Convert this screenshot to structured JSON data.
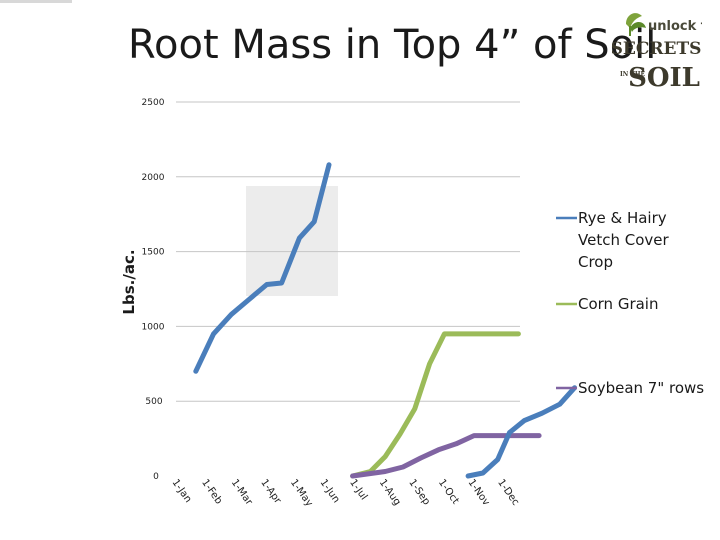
{
  "slide": {
    "title": "Root Mass in Top 4” of Soil",
    "logo": {
      "line1": "unlock the",
      "line2": "SECRETS",
      "line3": "IN THE",
      "line4": "SOIL",
      "icon": "sprout-icon"
    }
  },
  "chart_data": {
    "type": "line",
    "title": "",
    "xlabel": "",
    "ylabel": "Lbs./ac.",
    "ylim": [
      0,
      2500
    ],
    "yticks": [
      0,
      500,
      1000,
      1500,
      2000,
      2500
    ],
    "grid": true,
    "legend_position": "right",
    "categories": [
      "1-Jan",
      "1-Feb",
      "1-Mar",
      "1-Apr",
      "1-May",
      "1-Jun",
      "1-Jul",
      "1-Aug",
      "1-Sep",
      "1-Oct",
      "1-Nov",
      "1-Dec"
    ],
    "series": [
      {
        "name": "Rye & Hairy Vetch Cover Crop",
        "legend_lines": [
          "Rye & Hairy",
          "Vetch Cover",
          "Crop"
        ],
        "color": "#4a7ebb",
        "points": [
          {
            "x": 0.6,
            "y": 700
          },
          {
            "x": 1.2,
            "y": 950
          },
          {
            "x": 1.8,
            "y": 1080
          },
          {
            "x": 2.4,
            "y": 1180
          },
          {
            "x": 3.0,
            "y": 1280
          },
          {
            "x": 3.5,
            "y": 1290
          },
          {
            "x": 4.1,
            "y": 1590
          },
          {
            "x": 4.6,
            "y": 1700
          },
          {
            "x": 5.1,
            "y": 2080
          }
        ]
      },
      {
        "name": "Corn Grain",
        "legend_lines": [
          "Corn Grain"
        ],
        "color": "#9bbb59",
        "points": [
          {
            "x": 5.9,
            "y": 0
          },
          {
            "x": 6.5,
            "y": 30
          },
          {
            "x": 7.0,
            "y": 130
          },
          {
            "x": 7.5,
            "y": 280
          },
          {
            "x": 8.0,
            "y": 450
          },
          {
            "x": 8.5,
            "y": 750
          },
          {
            "x": 9.0,
            "y": 950
          },
          {
            "x": 10.0,
            "y": 950
          },
          {
            "x": 11.5,
            "y": 950
          }
        ]
      },
      {
        "name": "Soybean 7\" rows",
        "legend_lines": [
          "Soybean 7\" rows"
        ],
        "color": "#8064a2",
        "points": [
          {
            "x": 5.9,
            "y": 0
          },
          {
            "x": 7.0,
            "y": 30
          },
          {
            "x": 7.6,
            "y": 60
          },
          {
            "x": 8.2,
            "y": 120
          },
          {
            "x": 8.8,
            "y": 175
          },
          {
            "x": 9.4,
            "y": 215
          },
          {
            "x": 10.0,
            "y": 270
          },
          {
            "x": 11.0,
            "y": 270
          },
          {
            "x": 12.2,
            "y": 270
          }
        ]
      },
      {
        "name": "",
        "color": "#4a7ebb",
        "points": [
          {
            "x": 9.8,
            "y": 0
          },
          {
            "x": 10.3,
            "y": 20
          },
          {
            "x": 10.8,
            "y": 110
          },
          {
            "x": 11.2,
            "y": 290
          },
          {
            "x": 11.7,
            "y": 370
          },
          {
            "x": 12.3,
            "y": 420
          },
          {
            "x": 12.9,
            "y": 480
          },
          {
            "x": 13.4,
            "y": 590
          }
        ]
      }
    ]
  }
}
